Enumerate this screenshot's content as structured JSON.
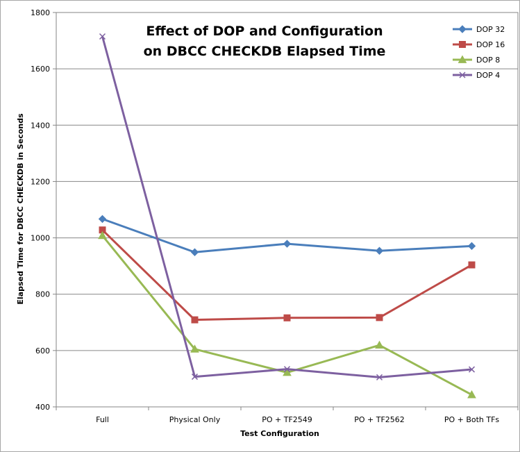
{
  "chart_data": {
    "type": "line",
    "title": [
      "Effect of DOP and Configuration",
      "on DBCC CHECKDB Elapsed Time"
    ],
    "xlabel": "Test Configuration",
    "ylabel": "Elapsed Time for DBCC CHECKDB  in Seconds",
    "categories": [
      "Full",
      "Physical Only",
      "PO + TF2549",
      "PO + TF2562",
      "PO + Both TFs"
    ],
    "ylim": [
      400,
      1800
    ],
    "yticks": [
      400,
      600,
      800,
      1000,
      1200,
      1400,
      1600,
      1800
    ],
    "grid": "horizontal",
    "legend": "top-right",
    "series": [
      {
        "name": "DOP 32",
        "color": "#4a7ebb",
        "marker": "diamond",
        "values": [
          1067,
          949,
          979,
          954,
          971
        ]
      },
      {
        "name": "DOP 16",
        "color": "#be4b48",
        "marker": "square",
        "values": [
          1028,
          709,
          716,
          717,
          904
        ]
      },
      {
        "name": "DOP 8",
        "color": "#98b954",
        "marker": "triangle",
        "values": [
          1008,
          605,
          522,
          619,
          443
        ]
      },
      {
        "name": "DOP 4",
        "color": "#7d60a0",
        "marker": "x",
        "values": [
          1715,
          507,
          534,
          505,
          533
        ]
      }
    ]
  }
}
